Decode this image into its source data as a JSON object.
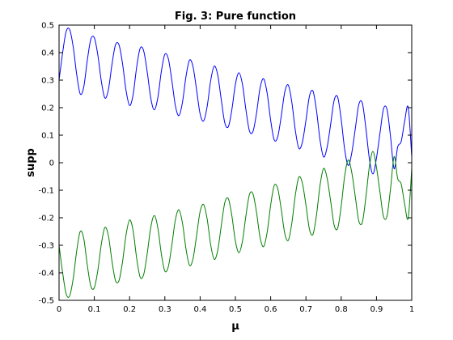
{
  "chart_data": {
    "type": "line",
    "title": "Fig. 3: Pure function",
    "xlabel": "μ",
    "ylabel": "supp",
    "xlim": [
      0,
      1
    ],
    "ylim": [
      -0.5,
      0.5
    ],
    "x_ticks": [
      "0",
      "0.1",
      "0.2",
      "0.3",
      "0.4",
      "0.5",
      "0.6",
      "0.7",
      "0.8",
      "0.9",
      "1"
    ],
    "y_ticks": [
      "-0.5",
      "-0.4",
      "-0.3",
      "-0.2",
      "-0.1",
      "0",
      "0.1",
      "0.2",
      "0.3",
      "0.4",
      "0.5"
    ],
    "grid": false,
    "legend": "none",
    "series": [
      {
        "color": "#0000ff",
        "x": [
          0,
          0.01,
          0.02,
          0.03,
          0.04,
          0.05,
          0.06,
          0.07,
          0.08,
          0.09,
          0.1,
          0.11,
          0.12,
          0.13,
          0.14,
          0.15,
          0.16,
          0.17,
          0.18,
          0.19,
          0.2,
          0.21,
          0.22,
          0.23,
          0.24,
          0.25,
          0.26,
          0.27,
          0.28,
          0.29,
          0.3,
          0.31,
          0.32,
          0.33,
          0.34,
          0.35,
          0.36,
          0.37,
          0.38,
          0.39,
          0.4,
          0.41,
          0.42,
          0.43,
          0.44,
          0.45,
          0.46,
          0.47,
          0.48,
          0.49,
          0.5,
          0.51,
          0.52,
          0.53,
          0.54,
          0.55,
          0.56,
          0.57,
          0.58,
          0.59,
          0.6,
          0.61,
          0.62,
          0.63,
          0.64,
          0.65,
          0.66,
          0.67,
          0.68,
          0.69,
          0.7,
          0.71,
          0.72,
          0.73,
          0.74,
          0.75,
          0.76,
          0.77,
          0.78,
          0.79,
          0.8,
          0.81,
          0.82,
          0.83,
          0.84,
          0.85,
          0.86,
          0.87,
          0.88,
          0.89,
          0.9,
          0.91,
          0.92,
          0.93,
          0.94,
          0.95,
          0.96,
          0.97,
          0.98,
          0.99,
          1
        ],
        "y": [
          0.3,
          0.398,
          0.476,
          0.484,
          0.422,
          0.321,
          0.25,
          0.275,
          0.371,
          0.448,
          0.454,
          0.391,
          0.295,
          0.235,
          0.266,
          0.357,
          0.428,
          0.428,
          0.36,
          0.262,
          0.208,
          0.247,
          0.347,
          0.416,
          0.406,
          0.33,
          0.235,
          0.192,
          0.236,
          0.331,
          0.394,
          0.377,
          0.297,
          0.206,
          0.171,
          0.22,
          0.314,
          0.373,
          0.348,
          0.264,
          0.177,
          0.152,
          0.205,
          0.299,
          0.351,
          0.318,
          0.228,
          0.145,
          0.131,
          0.193,
          0.285,
          0.327,
          0.285,
          0.191,
          0.115,
          0.114,
          0.181,
          0.272,
          0.305,
          0.253,
          0.154,
          0.083,
          0.094,
          0.169,
          0.257,
          0.282,
          0.22,
          0.117,
          0.052,
          0.075,
          0.154,
          0.242,
          0.26,
          0.189,
          0.082,
          0.021,
          0.056,
          0.139,
          0.227,
          0.238,
          0.157,
          0.047,
          -0.01,
          0.036,
          0.124,
          0.212,
          0.216,
          0.125,
          0.013,
          -0.041,
          0.017,
          0.108,
          0.196,
          0.193,
          0.093,
          -0.022,
          0.057,
          0.077,
          0.151,
          0.201,
          0.021
        ]
      },
      {
        "color": "#007f00",
        "x": [
          0,
          0.01,
          0.02,
          0.03,
          0.04,
          0.05,
          0.06,
          0.07,
          0.08,
          0.09,
          0.1,
          0.11,
          0.12,
          0.13,
          0.14,
          0.15,
          0.16,
          0.17,
          0.18,
          0.19,
          0.2,
          0.21,
          0.22,
          0.23,
          0.24,
          0.25,
          0.26,
          0.27,
          0.28,
          0.29,
          0.3,
          0.31,
          0.32,
          0.33,
          0.34,
          0.35,
          0.36,
          0.37,
          0.38,
          0.39,
          0.4,
          0.41,
          0.42,
          0.43,
          0.44,
          0.45,
          0.46,
          0.47,
          0.48,
          0.49,
          0.5,
          0.51,
          0.52,
          0.53,
          0.54,
          0.55,
          0.56,
          0.57,
          0.58,
          0.59,
          0.6,
          0.61,
          0.62,
          0.63,
          0.64,
          0.65,
          0.66,
          0.67,
          0.68,
          0.69,
          0.7,
          0.71,
          0.72,
          0.73,
          0.74,
          0.75,
          0.76,
          0.77,
          0.78,
          0.79,
          0.8,
          0.81,
          0.82,
          0.83,
          0.84,
          0.85,
          0.86,
          0.87,
          0.88,
          0.89,
          0.9,
          0.91,
          0.92,
          0.93,
          0.94,
          0.95,
          0.96,
          0.97,
          0.98,
          0.99,
          1
        ],
        "y": [
          -0.3,
          -0.398,
          -0.476,
          -0.484,
          -0.422,
          -0.321,
          -0.25,
          -0.275,
          -0.371,
          -0.448,
          -0.454,
          -0.391,
          -0.295,
          -0.235,
          -0.266,
          -0.357,
          -0.428,
          -0.428,
          -0.36,
          -0.262,
          -0.208,
          -0.247,
          -0.347,
          -0.416,
          -0.406,
          -0.33,
          -0.235,
          -0.192,
          -0.236,
          -0.331,
          -0.394,
          -0.377,
          -0.297,
          -0.206,
          -0.171,
          -0.22,
          -0.314,
          -0.373,
          -0.348,
          -0.264,
          -0.177,
          -0.152,
          -0.205,
          -0.299,
          -0.351,
          -0.318,
          -0.228,
          -0.145,
          -0.131,
          -0.193,
          -0.285,
          -0.327,
          -0.285,
          -0.191,
          -0.115,
          -0.114,
          -0.181,
          -0.272,
          -0.305,
          -0.253,
          -0.154,
          -0.083,
          -0.094,
          -0.169,
          -0.257,
          -0.282,
          -0.22,
          -0.117,
          -0.052,
          -0.075,
          -0.154,
          -0.242,
          -0.26,
          -0.189,
          -0.082,
          -0.021,
          -0.056,
          -0.139,
          -0.227,
          -0.238,
          -0.157,
          -0.047,
          0.01,
          -0.036,
          -0.124,
          -0.212,
          -0.216,
          -0.125,
          -0.013,
          0.041,
          -0.017,
          -0.108,
          -0.196,
          -0.193,
          -0.093,
          0.022,
          -0.057,
          -0.077,
          -0.151,
          -0.201,
          -0.021
        ]
      }
    ]
  }
}
